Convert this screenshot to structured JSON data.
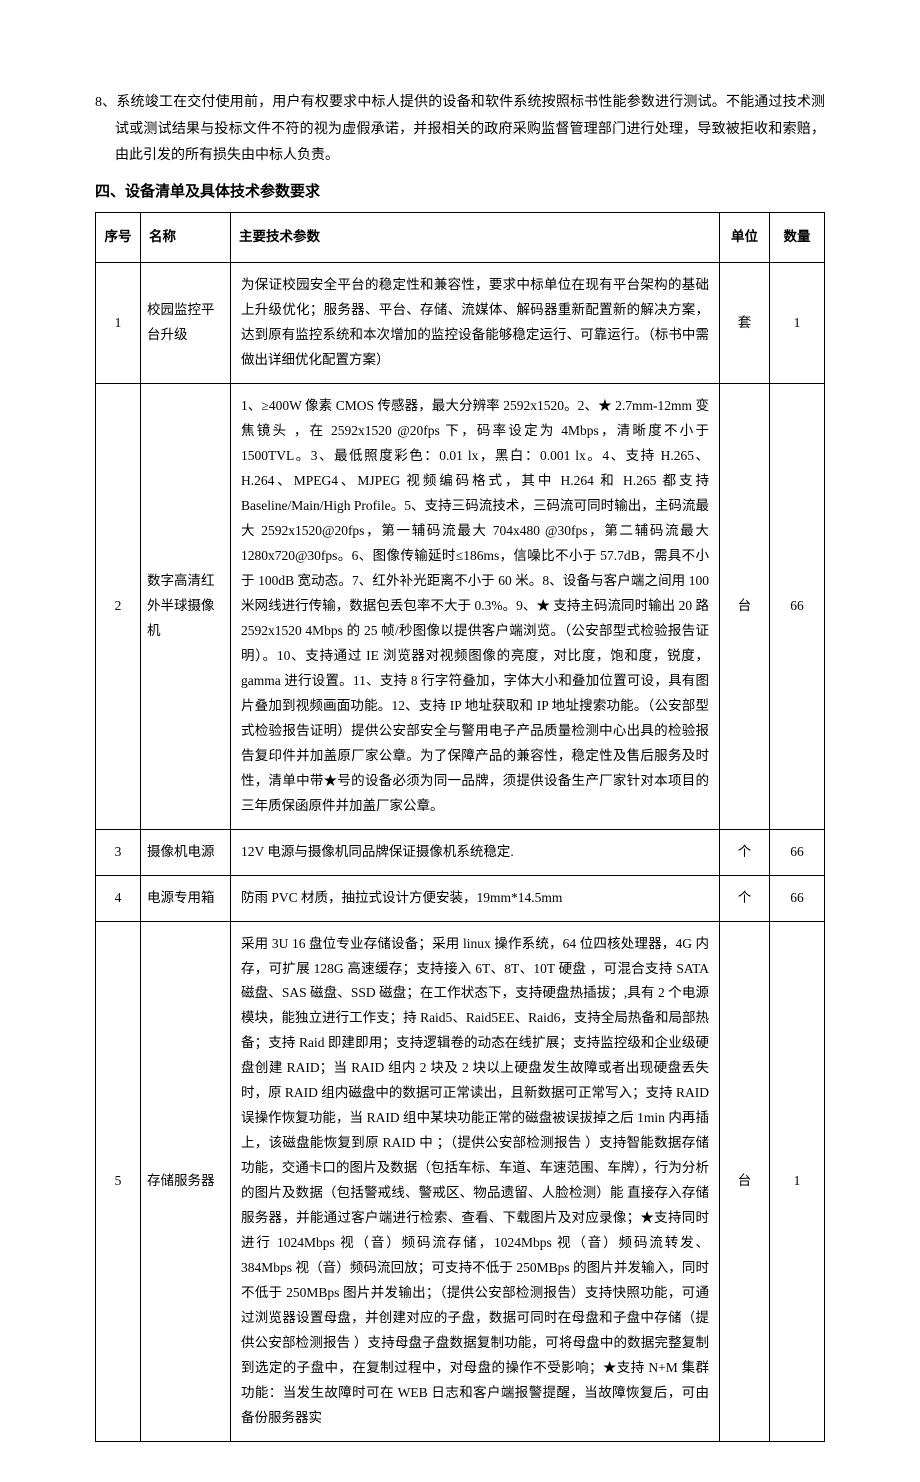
{
  "intro_paragraph": {
    "number": "8、",
    "text": "系统竣工在交付使用前，用户有权要求中标人提供的设备和软件系统按照标书性能参数进行测试。不能通过技术测试或测试结果与投标文件不符的视为虚假承诺，并报相关的政府采购监督管理部门进行处理，导致被拒收和索赔，由此引发的所有损失由中标人负责。"
  },
  "section_title": "四、设备清单及具体技术参数要求",
  "table": {
    "headers": {
      "seq": "序号",
      "name": "名称",
      "spec": "主要技术参数",
      "unit": "单位",
      "qty": "数量"
    },
    "rows": [
      {
        "seq": "1",
        "name": "校园监控平台升级",
        "spec": "为保证校园安全平台的稳定性和兼容性，要求中标单位在现有平台架构的基础上升级优化；服务器、平台、存储、流媒体、解码器重新配置新的解决方案，达到原有监控系统和本次增加的监控设备能够稳定运行、可靠运行。（标书中需做出详细优化配置方案）",
        "unit": "套",
        "qty": "1"
      },
      {
        "seq": "2",
        "name": "数字高清红外半球摄像机",
        "spec": "1、≥400W 像素 CMOS 传感器，最大分辨率 2592x1520。2、★ 2.7mm-12mm 变焦镜头 ，在 2592x1520 @20fps 下，码率设定为 4Mbps，清晰度不小于 1500TVL。3、最低照度彩色：0.01 lx，黑白：0.001 lx。4、支持 H.265、H.264、MPEG4、MJPEG 视频编码格式，其中 H.264 和 H.265 都支持 Baseline/Main/High Profile。5、支持三码流技术，三码流可同时输出，主码流最大 2592x1520@20fps，第一辅码流最大 704x480 @30fps，第二辅码流最大 1280x720@30fps。6、图像传输延时≤186ms，信噪比不小于 57.7dB，需具不小于 100dB 宽动态。7、红外补光距离不小于 60 米。8、设备与客户端之间用 100 米网线进行传输，数据包丢包率不大于 0.3%。9、★ 支持主码流同时输出 20 路 2592x1520 4Mbps 的 25 帧/秒图像以提供客户端浏览。（公安部型式检验报告证明）。10、支持通过 IE 浏览器对视频图像的亮度，对比度，饱和度，锐度，gamma 进行设置。11、支持 8 行字符叠加，字体大小和叠加位置可设，具有图片叠加到视频画面功能。12、支持 IP 地址获取和 IP 地址搜索功能。（公安部型式检验报告证明）提供公安部安全与警用电子产品质量检测中心出具的检验报告复印件并加盖原厂家公章。为了保障产品的兼容性，稳定性及售后服务及时性，清单中带★号的设备必须为同一品牌，须提供设备生产厂家针对本项目的三年质保函原件并加盖厂家公章。",
        "unit": "台",
        "qty": "66"
      },
      {
        "seq": "3",
        "name": "摄像机电源",
        "spec": "12V 电源与摄像机同品牌保证摄像机系统稳定.",
        "unit": "个",
        "qty": "66"
      },
      {
        "seq": "4",
        "name": "电源专用箱",
        "spec": "防雨 PVC 材质，抽拉式设计方便安装，19mm*14.5mm",
        "unit": "个",
        "qty": "66"
      },
      {
        "seq": "5",
        "name": "存储服务器",
        "spec": "采用 3U 16 盘位专业存储设备；采用 linux 操作系统，64 位四核处理器，4G 内存，可扩展 128G 高速缓存；支持接入 6T、8T、10T 硬盘 ，可混合支持 SATA 磁盘、SAS 磁盘、SSD 磁盘；在工作状态下，支持硬盘热插拔；,具有 2 个电源模块，能独立进行工作支；持 Raid5、Raid5EE、Raid6，支持全局热备和局部热备；支持 Raid 即建即用；支持逻辑卷的动态在线扩展；支持监控级和企业级硬盘创建 RAID；当 RAID 组内 2 块及 2 块以上硬盘发生故障或者出现硬盘丢失时，原 RAID 组内磁盘中的数据可正常读出，且新数据可正常写入；支持 RAID 误操作恢复功能，当 RAID 组中某块功能正常的磁盘被误拔掉之后 1min 内再插上，该磁盘能恢复到原 RAID 中 ；（提供公安部检测报告 ）支持智能数据存储功能，交通卡口的图片及数据（包括车标、车道、车速范围、车牌），行为分析的图片及数据（包括警戒线、警戒区、物品遗留、人脸检测）能 直接存入存储服务器，并能通过客户端进行检索、查看、下载图片及对应录像；★支持同时进行 1024Mbps 视（音）频码流存储，1024Mbps 视（音）频码流转发、384Mbps 视（音）频码流回放；可支持不低于 250MBps 的图片并发输入，同时不低于 250MBps 图片并发输出；（提供公安部检测报告）支持快照功能，可通过浏览器设置母盘，并创建对应的子盘，数据可同时在母盘和子盘中存储（提供公安部检测报告 ）支持母盘子盘数据复制功能，可将母盘中的数据完整复制到选定的子盘中，在复制过程中，对母盘的操作不受影响；★支持 N+M 集群功能：当发生故障时可在 WEB 日志和客户端报警提醒，当故障恢复后，可由备份服务器实",
        "unit": "台",
        "qty": "1"
      }
    ]
  }
}
